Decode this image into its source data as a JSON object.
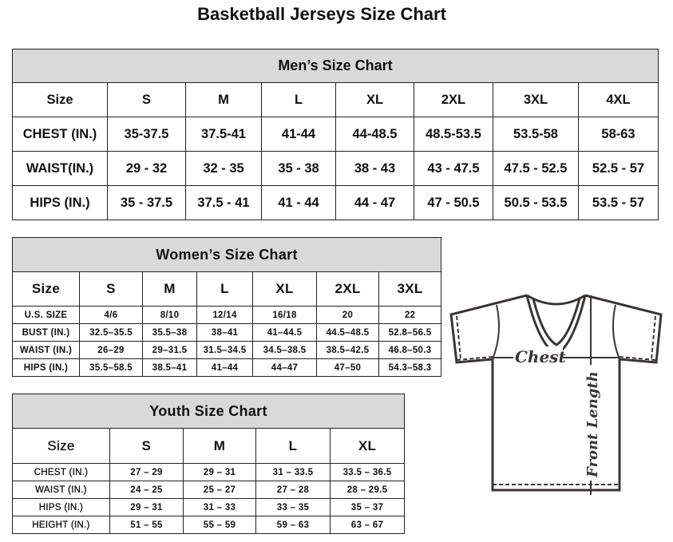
{
  "title": "Basketball Jerseys Size Chart",
  "men": {
    "heading": "Men’s Size Chart",
    "header": [
      "Size",
      "S",
      "M",
      "L",
      "XL",
      "2XL",
      "3XL",
      "4XL"
    ],
    "rows": [
      [
        "CHEST (IN.)",
        "35-37.5",
        "37.5-41",
        "41-44",
        "44-48.5",
        "48.5-53.5",
        "53.5-58",
        "58-63"
      ],
      [
        "WAIST(IN.)",
        "29 - 32",
        "32 - 35",
        "35 - 38",
        "38 - 43",
        "43 - 47.5",
        "47.5 - 52.5",
        "52.5 - 57"
      ],
      [
        "HIPS (IN.)",
        "35 - 37.5",
        "37.5 - 41",
        "41 - 44",
        "44 - 47",
        "47 - 50.5",
        "50.5 - 53.5",
        "53.5 - 57"
      ]
    ]
  },
  "women": {
    "heading": "Women’s Size Chart",
    "header": [
      "Size",
      "S",
      "M",
      "L",
      "XL",
      "2XL",
      "3XL"
    ],
    "rows": [
      [
        "U.S.  SIZE",
        "4/6",
        "8/10",
        "12/14",
        "16/18",
        "20",
        "22"
      ],
      [
        "BUST  (IN.)",
        "32.5–35.5",
        "35.5–38",
        "38–41",
        "41–44.5",
        "44.5–48.5",
        "52.8–56.5"
      ],
      [
        "WAIST  (IN.)",
        "26–29",
        "29–31.5",
        "31.5–34.5",
        "34.5–38.5",
        "38.5–42.5",
        "46.8–50.3"
      ],
      [
        "HIPS  (IN.)",
        "35.5–58.5",
        "38.5–41",
        "41–44",
        "44–47",
        "47–50",
        "54.3–58.3"
      ]
    ]
  },
  "youth": {
    "heading": "Youth Size Chart",
    "header": [
      "Size",
      "S",
      "M",
      "L",
      "XL"
    ],
    "rows": [
      [
        "CHEST  (IN.)",
        "27  –  29",
        "29  –  31",
        "31  –  33.5",
        "33.5  –  36.5"
      ],
      [
        "WAIST  (IN.)",
        "24  –  25",
        "25  –  27",
        "27  –  28",
        "28  –  29.5"
      ],
      [
        "HIPS  (IN.)",
        "29  –  31",
        "31  –  33",
        "33  –  35",
        "35  –  37"
      ],
      [
        "HEIGHT  (IN.)",
        "51  –  55",
        "55  –  59",
        "59  –  63",
        "63  –  67"
      ]
    ]
  },
  "diagram": {
    "chest_label": "Chest",
    "length_label": "Front Length",
    "line_color": "#3a3535"
  }
}
